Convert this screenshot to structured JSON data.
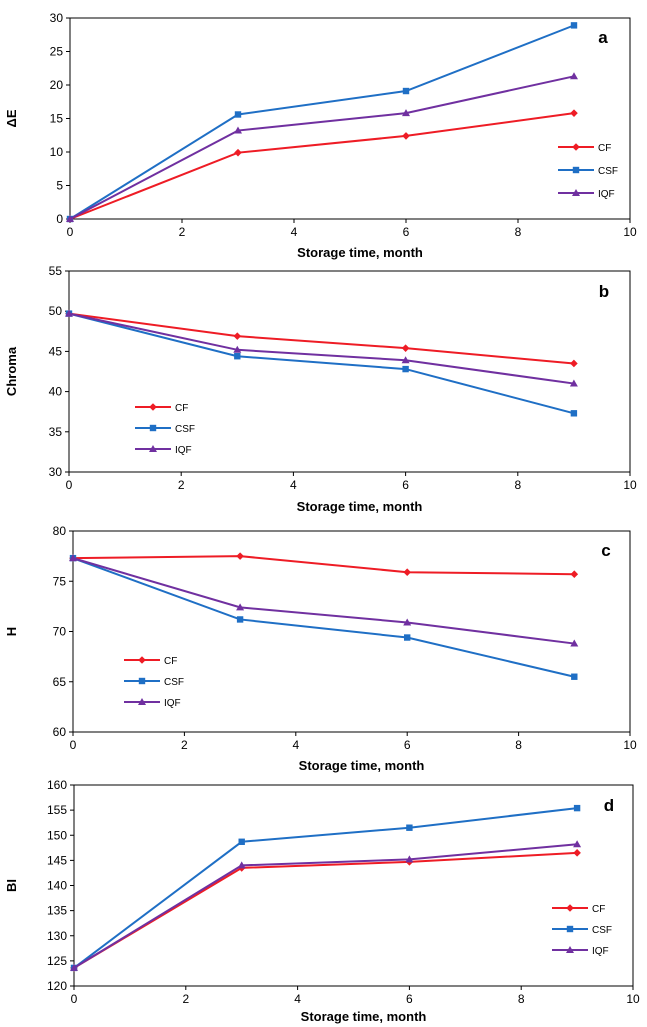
{
  "chart_data": [
    {
      "type": "line",
      "panel_label": "a",
      "xlabel": "Storage time, month",
      "ylabel": "ΔE",
      "xlim": [
        0,
        10
      ],
      "ylim": [
        0,
        30
      ],
      "xticks": [
        "0",
        "2",
        "4",
        "6",
        "8",
        "10"
      ],
      "yticks": [
        "0",
        "5",
        "10",
        "15",
        "20",
        "25",
        "30"
      ],
      "legend_position": "right",
      "grid": false,
      "x": [
        0,
        3,
        6,
        9
      ],
      "series": [
        {
          "name": "CF",
          "color": "#ee1c25",
          "marker": "diamond",
          "values": [
            0,
            9.9,
            12.4,
            15.8
          ]
        },
        {
          "name": "CSF",
          "color": "#1f6fc5",
          "marker": "square",
          "values": [
            0,
            15.6,
            19.1,
            28.9
          ]
        },
        {
          "name": "IQF",
          "color": "#7030a0",
          "marker": "triangle",
          "values": [
            0,
            13.2,
            15.8,
            21.3
          ]
        }
      ]
    },
    {
      "type": "line",
      "panel_label": "b",
      "xlabel": "Storage time, month",
      "ylabel": "Chroma",
      "xlim": [
        0,
        10
      ],
      "ylim": [
        30,
        55
      ],
      "xticks": [
        "0",
        "2",
        "4",
        "6",
        "8",
        "10"
      ],
      "yticks": [
        "30",
        "35",
        "40",
        "45",
        "50",
        "55"
      ],
      "legend_position": "left",
      "grid": false,
      "x": [
        0,
        3,
        6,
        9
      ],
      "series": [
        {
          "name": "CF",
          "color": "#ee1c25",
          "marker": "diamond",
          "values": [
            49.7,
            46.9,
            45.4,
            43.5
          ]
        },
        {
          "name": "CSF",
          "color": "#1f6fc5",
          "marker": "square",
          "values": [
            49.7,
            44.4,
            42.8,
            37.3
          ]
        },
        {
          "name": "IQF",
          "color": "#7030a0",
          "marker": "triangle",
          "values": [
            49.7,
            45.2,
            43.9,
            41.0
          ]
        }
      ]
    },
    {
      "type": "line",
      "panel_label": "c",
      "xlabel": "Storage time, month",
      "ylabel": "H",
      "xlim": [
        0,
        10
      ],
      "ylim": [
        60,
        80
      ],
      "xticks": [
        "0",
        "2",
        "4",
        "6",
        "8",
        "10"
      ],
      "yticks": [
        "60",
        "65",
        "70",
        "75",
        "80"
      ],
      "legend_position": "left",
      "grid": false,
      "x": [
        0,
        3,
        6,
        9
      ],
      "series": [
        {
          "name": "CF",
          "color": "#ee1c25",
          "marker": "diamond",
          "values": [
            77.3,
            77.5,
            75.9,
            75.7
          ]
        },
        {
          "name": "CSF",
          "color": "#1f6fc5",
          "marker": "square",
          "values": [
            77.3,
            71.2,
            69.4,
            65.5
          ]
        },
        {
          "name": "IQF",
          "color": "#7030a0",
          "marker": "triangle",
          "values": [
            77.3,
            72.4,
            70.9,
            68.8
          ]
        }
      ]
    },
    {
      "type": "line",
      "panel_label": "d",
      "xlabel": "Storage time, month",
      "ylabel": "BI",
      "xlim": [
        0,
        10
      ],
      "ylim": [
        120,
        160
      ],
      "xticks": [
        "0",
        "2",
        "4",
        "6",
        "8",
        "10"
      ],
      "yticks": [
        "120",
        "125",
        "130",
        "135",
        "140",
        "145",
        "150",
        "155",
        "160"
      ],
      "legend_position": "right",
      "grid": false,
      "x": [
        0,
        3,
        6,
        9
      ],
      "series": [
        {
          "name": "CF",
          "color": "#ee1c25",
          "marker": "diamond",
          "values": [
            123.6,
            143.5,
            144.7,
            146.5
          ]
        },
        {
          "name": "CSF",
          "color": "#1f6fc5",
          "marker": "square",
          "values": [
            123.6,
            148.7,
            151.5,
            155.4
          ]
        },
        {
          "name": "IQF",
          "color": "#7030a0",
          "marker": "triangle",
          "values": [
            123.6,
            144.0,
            145.2,
            148.2
          ]
        }
      ]
    }
  ]
}
